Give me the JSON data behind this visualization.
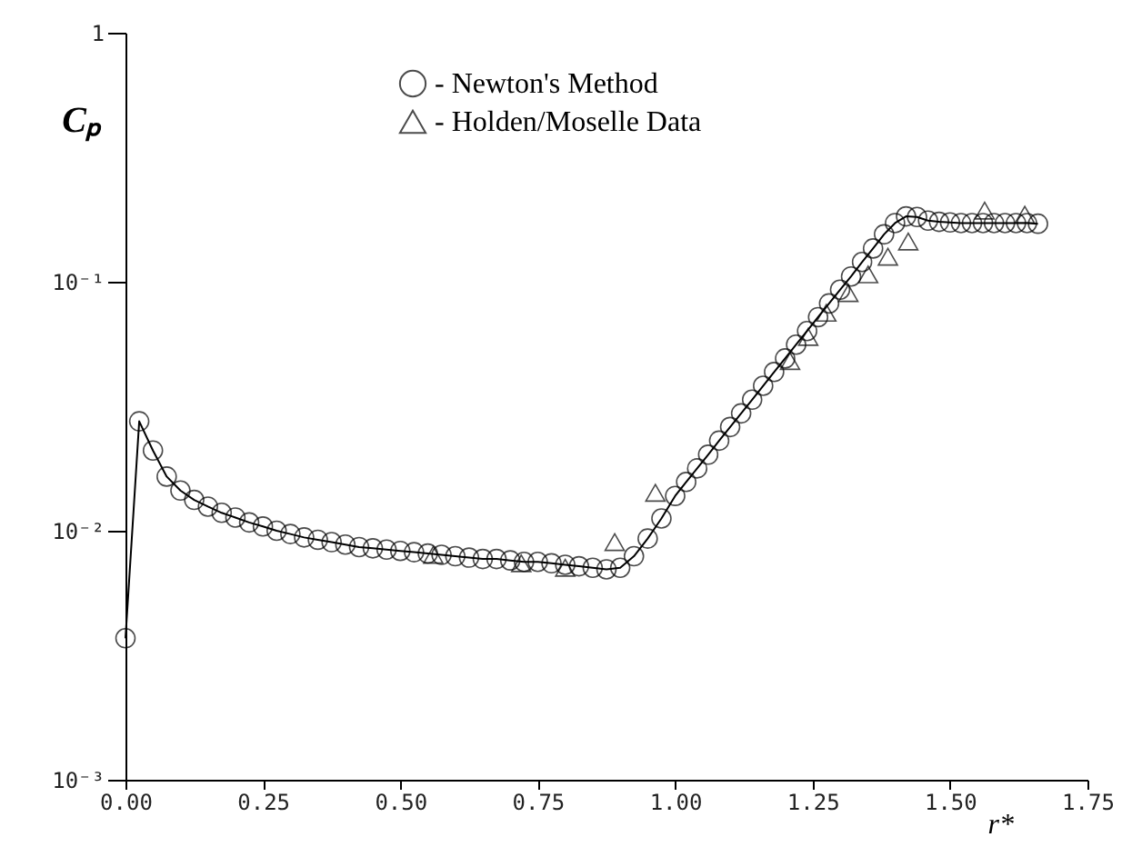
{
  "chart_data": {
    "type": "line",
    "xlabel": "r*",
    "ylabel": "Cₚ",
    "log": "y",
    "grid": false,
    "legend": "top left",
    "xlim": [
      0,
      1.75
    ],
    "ylim": [
      0.001,
      1
    ],
    "xticks": [
      {
        "value": 0,
        "label": "0.00"
      },
      {
        "value": 0.25,
        "label": "0.25"
      },
      {
        "value": 0.5,
        "label": "0.50"
      },
      {
        "value": 0.75,
        "label": "0.75"
      },
      {
        "value": 1,
        "label": "1.00"
      },
      {
        "value": 1.25,
        "label": "1.25"
      },
      {
        "value": 1.5,
        "label": "1.50"
      },
      {
        "value": 1.75,
        "label": "1.75"
      }
    ],
    "yticks": [
      {
        "value": 0.001,
        "label": "10⁻³"
      },
      {
        "value": 0.01,
        "label": "10⁻²"
      },
      {
        "value": 0.1,
        "label": "10⁻¹"
      },
      1
    ],
    "series": [
      {
        "name": "- Newton's Method",
        "marker": "circle",
        "color": "#000000",
        "x": [
          0,
          0.025,
          0.05,
          0.075,
          0.1,
          0.125,
          0.15,
          0.175,
          0.2,
          0.225,
          0.25,
          0.275,
          0.3,
          0.325,
          0.35,
          0.375,
          0.4,
          0.425,
          0.45,
          0.475,
          0.5,
          0.525,
          0.55,
          0.575,
          0.6,
          0.625,
          0.65,
          0.675,
          0.7,
          0.725,
          0.75,
          0.775,
          0.8,
          0.825,
          0.85,
          0.875,
          0.9,
          0.925,
          0.95,
          0.975,
          1.0,
          1.02,
          1.04,
          1.06,
          1.08,
          1.1,
          1.12,
          1.14,
          1.16,
          1.18,
          1.2,
          1.22,
          1.24,
          1.26,
          1.28,
          1.3,
          1.32,
          1.34,
          1.36,
          1.38,
          1.4,
          1.42,
          1.44,
          1.46,
          1.48,
          1.5,
          1.52,
          1.54,
          1.56,
          1.58,
          1.6,
          1.62,
          1.64,
          1.66
        ],
        "values": [
          0.0037,
          0.0275,
          0.021,
          0.0165,
          0.0145,
          0.0133,
          0.0125,
          0.0118,
          0.0113,
          0.0108,
          0.0104,
          0.01,
          0.0097,
          0.0094,
          0.0092,
          0.009,
          0.0088,
          0.0086,
          0.0085,
          0.0084,
          0.0083,
          0.0082,
          0.0081,
          0.008,
          0.0079,
          0.0078,
          0.0077,
          0.0077,
          0.0076,
          0.0075,
          0.0075,
          0.0074,
          0.0073,
          0.0072,
          0.0071,
          0.007,
          0.0071,
          0.0079,
          0.0093,
          0.0112,
          0.0138,
          0.0157,
          0.0178,
          0.0202,
          0.023,
          0.0261,
          0.0296,
          0.0336,
          0.0382,
          0.0434,
          0.0492,
          0.0559,
          0.0634,
          0.0721,
          0.0818,
          0.0929,
          0.105,
          0.12,
          0.136,
          0.155,
          0.172,
          0.183,
          0.182,
          0.176,
          0.174,
          0.173,
          0.172,
          0.172,
          0.172,
          0.172,
          0.172,
          0.172,
          0.172,
          0.171
        ]
      },
      {
        "name": "- Holden/Moselle Data",
        "type": "scatter",
        "marker": "triangle",
        "color": "#000000",
        "x": [
          0.56,
          0.72,
          0.8,
          0.89,
          0.964,
          1.209,
          1.242,
          1.275,
          1.315,
          1.351,
          1.387,
          1.424,
          1.563,
          1.636
        ],
        "values": [
          0.008,
          0.0074,
          0.0071,
          0.009,
          0.0142,
          0.048,
          0.06,
          0.075,
          0.09,
          0.107,
          0.126,
          0.145,
          0.193,
          0.186
        ]
      }
    ]
  }
}
